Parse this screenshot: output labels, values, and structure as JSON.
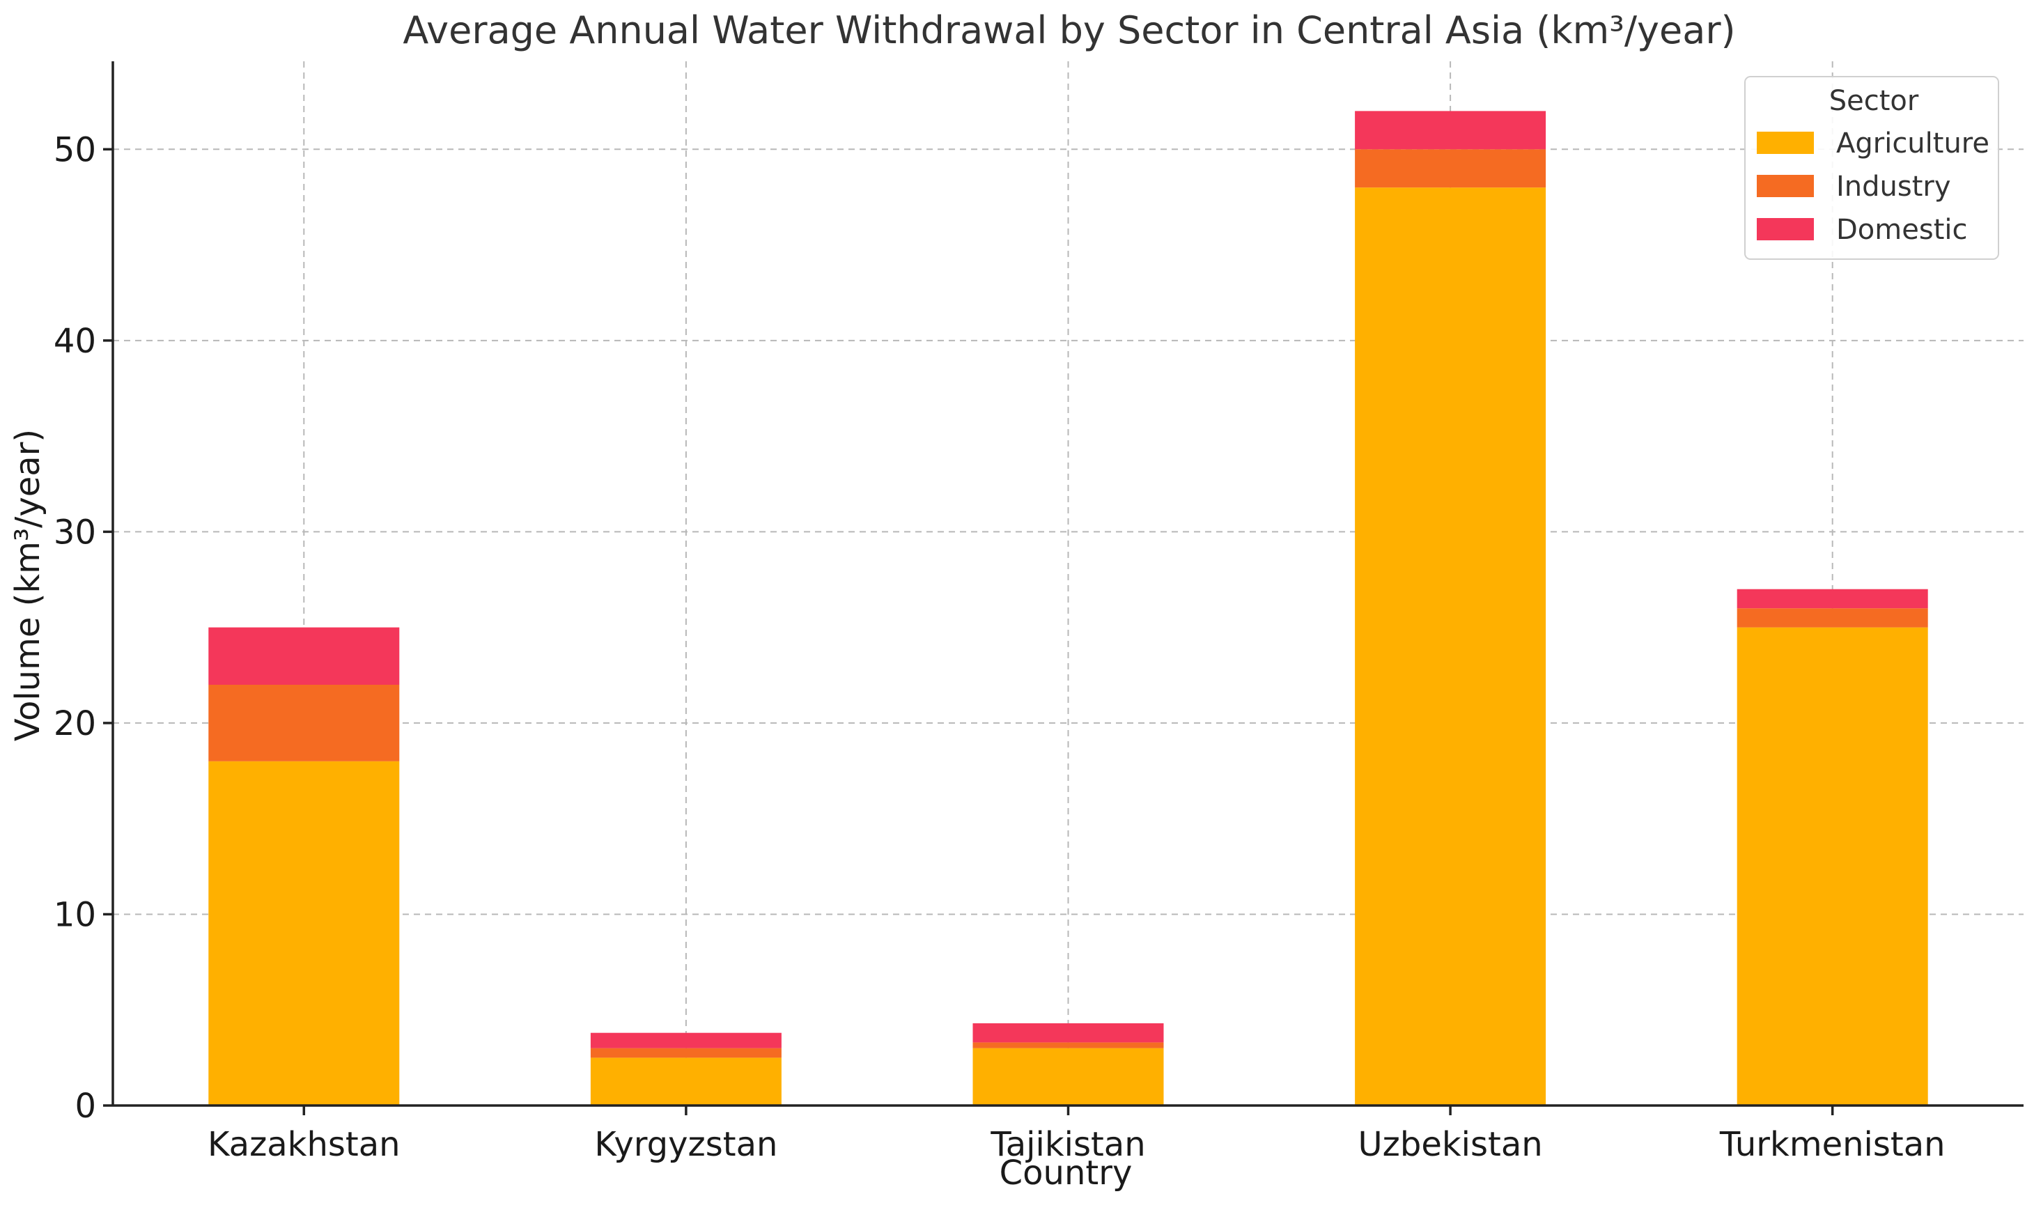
{
  "chart_data": {
    "type": "bar",
    "stacked": true,
    "title": "Average Annual Water Withdrawal by Sector in Central Asia (km³/year)",
    "xlabel": "Country",
    "ylabel": "Volume (km³/year)",
    "ylim": [
      0,
      54.6
    ],
    "yticks": [
      0,
      10,
      20,
      30,
      40,
      50
    ],
    "grid": true,
    "legend_title": "Sector",
    "legend_position": "top-right",
    "categories": [
      "Kazakhstan",
      "Kyrgyzstan",
      "Tajikistan",
      "Uzbekistan",
      "Turkmenistan"
    ],
    "series": [
      {
        "name": "Agriculture",
        "color": "#FFB000",
        "values": [
          18,
          2.5,
          3,
          48,
          25
        ]
      },
      {
        "name": "Industry",
        "color": "#F56B22",
        "values": [
          4,
          0.5,
          0.3,
          2,
          1
        ]
      },
      {
        "name": "Domestic",
        "color": "#F4375A",
        "values": [
          3,
          0.8,
          1,
          2,
          1
        ]
      }
    ]
  }
}
